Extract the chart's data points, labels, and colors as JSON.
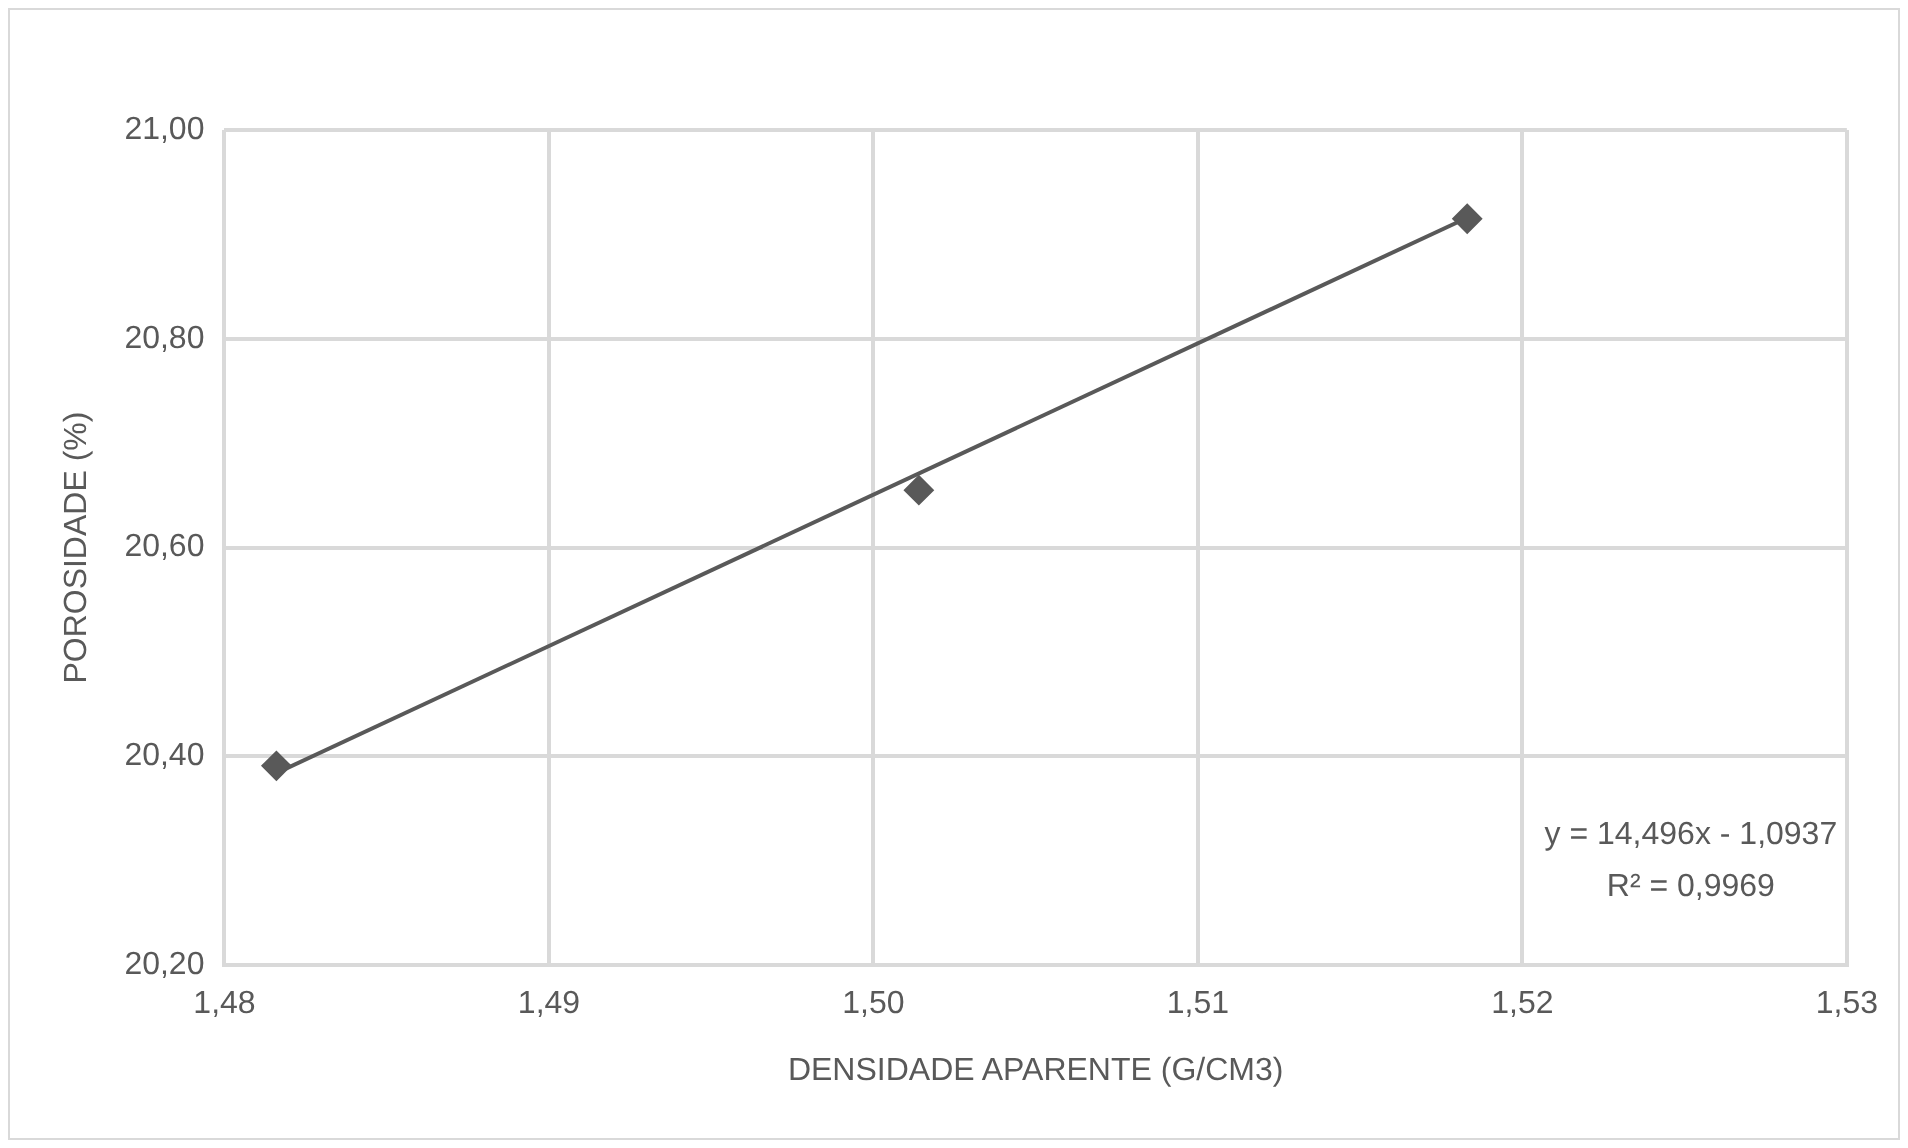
{
  "chart_data": {
    "type": "scatter",
    "xlabel": "DENSIDADE APARENTE (G/CM3)",
    "ylabel": "POROSIDADE (%)",
    "x": [
      1.4816,
      1.5014,
      1.5183
    ],
    "series": [
      {
        "color": "#595959",
        "values": [
          20.391,
          20.655,
          20.915
        ],
        "marker": "diamond"
      },
      {
        "type": "line",
        "color": "#595959",
        "x": [
          1.4816,
          1.5183
        ],
        "values": [
          20.384,
          20.916
        ],
        "marker": "none",
        "line_style": "solid"
      }
    ],
    "xlim": [
      1.48,
      1.53
    ],
    "xticks": [
      {
        "value": 1.48,
        "label": "1,48"
      },
      {
        "value": 1.49,
        "label": "1,49"
      },
      {
        "value": 1.5,
        "label": "1,50"
      },
      {
        "value": 1.51,
        "label": "1,51"
      },
      {
        "value": 1.52,
        "label": "1,52"
      },
      {
        "value": 1.53,
        "label": "1,53"
      }
    ],
    "ylim": [
      20.2,
      21
    ],
    "yticks": [
      {
        "value": 20.2,
        "label": "20,20"
      },
      {
        "value": 20.4,
        "label": "20,40"
      },
      {
        "value": 20.6,
        "label": "20,60"
      },
      {
        "value": 20.8,
        "label": "20,80"
      },
      {
        "value": 21,
        "label": "21,00"
      }
    ],
    "grid": true,
    "legend": false,
    "annotations": [
      "y = 14,496x - 1,0937",
      "R² = 0,9969"
    ]
  }
}
